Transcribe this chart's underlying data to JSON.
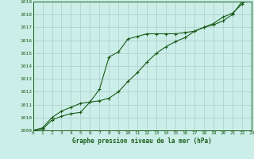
{
  "title": "Graphe pression niveau de la mer (hPa)",
  "background_color": "#cceee8",
  "grid_color": "#aacccc",
  "line_color": "#1a5c1a",
  "x_min": 0,
  "x_max": 23,
  "y_min": 1009,
  "y_max": 1019,
  "series1_x": [
    0,
    1,
    2,
    3,
    4,
    5,
    6,
    7,
    8,
    9,
    10,
    11,
    12,
    13,
    14,
    15,
    16,
    17,
    18,
    19,
    20,
    21,
    22,
    23
  ],
  "series1_y": [
    1009.0,
    1009.1,
    1009.8,
    1010.1,
    1010.3,
    1010.4,
    1011.2,
    1012.2,
    1014.7,
    1015.1,
    1016.1,
    1016.3,
    1016.5,
    1016.5,
    1016.5,
    1016.5,
    1016.6,
    1016.7,
    1017.0,
    1017.2,
    1017.5,
    1018.0,
    1019.0,
    1019.4
  ],
  "series2_x": [
    0,
    1,
    2,
    3,
    4,
    5,
    6,
    7,
    8,
    9,
    10,
    11,
    12,
    13,
    14,
    15,
    16,
    17,
    18,
    19,
    20,
    21,
    22,
    23
  ],
  "series2_y": [
    1009.0,
    1009.2,
    1010.0,
    1010.5,
    1010.8,
    1011.1,
    1011.2,
    1011.3,
    1011.5,
    1012.0,
    1012.8,
    1013.5,
    1014.3,
    1015.0,
    1015.5,
    1015.9,
    1016.2,
    1016.7,
    1017.0,
    1017.3,
    1017.8,
    1018.1,
    1018.8,
    1019.4
  ]
}
